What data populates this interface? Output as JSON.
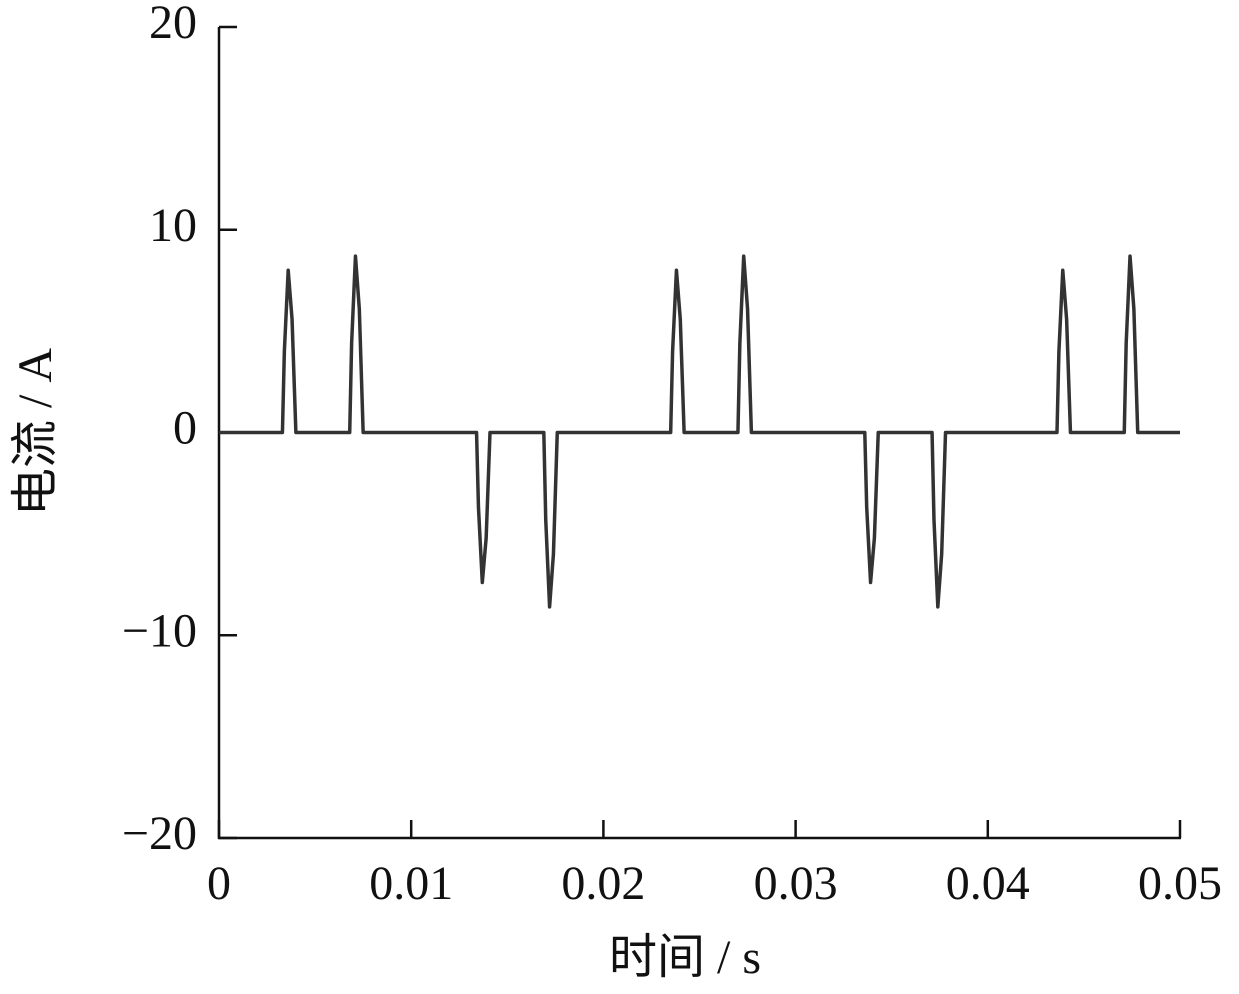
{
  "chart_data": {
    "type": "line",
    "xlabel": "时间 / s",
    "ylabel": "电流 / A",
    "xlim": [
      0,
      0.05
    ],
    "ylim": [
      -20,
      20
    ],
    "xticks": [
      0,
      0.01,
      0.02,
      0.03,
      0.04,
      0.05
    ],
    "yticks": [
      {
        "value": -20,
        "label": "−20"
      },
      {
        "value": -10,
        "label": "−10"
      },
      0,
      10,
      20
    ],
    "series": [
      {
        "color": "#333333",
        "x": [
          0,
          0.0033,
          0.0034,
          0.0036,
          0.0038,
          0.004,
          0.0068,
          0.0069,
          0.0071,
          0.0073,
          0.0075,
          0.0134,
          0.0135,
          0.0137,
          0.0139,
          0.0141,
          0.0169,
          0.017,
          0.0172,
          0.0174,
          0.0176,
          0.0235,
          0.0236,
          0.0238,
          0.024,
          0.0242,
          0.027,
          0.0271,
          0.0273,
          0.0275,
          0.0277,
          0.0336,
          0.0337,
          0.0339,
          0.0341,
          0.0343,
          0.0371,
          0.0372,
          0.0374,
          0.0376,
          0.0378,
          0.0436,
          0.0437,
          0.0439,
          0.0441,
          0.0443,
          0.0471,
          0.0472,
          0.0474,
          0.0476,
          0.0478,
          0.05
        ],
        "values": [
          0,
          0,
          4,
          8,
          5.6,
          0,
          0,
          4.4,
          8.7,
          6.1,
          0,
          0,
          -3.7,
          -7.4,
          -5.2,
          0,
          0,
          -4.3,
          -8.6,
          -6,
          0,
          0,
          4,
          8,
          5.6,
          0,
          0,
          4.4,
          8.7,
          6.1,
          0,
          0,
          -3.7,
          -7.4,
          -5.2,
          0,
          0,
          -4.3,
          -8.6,
          -6,
          0,
          0,
          4,
          8,
          5.6,
          0,
          0,
          4.4,
          8.7,
          6.1,
          0,
          0
        ]
      }
    ]
  }
}
